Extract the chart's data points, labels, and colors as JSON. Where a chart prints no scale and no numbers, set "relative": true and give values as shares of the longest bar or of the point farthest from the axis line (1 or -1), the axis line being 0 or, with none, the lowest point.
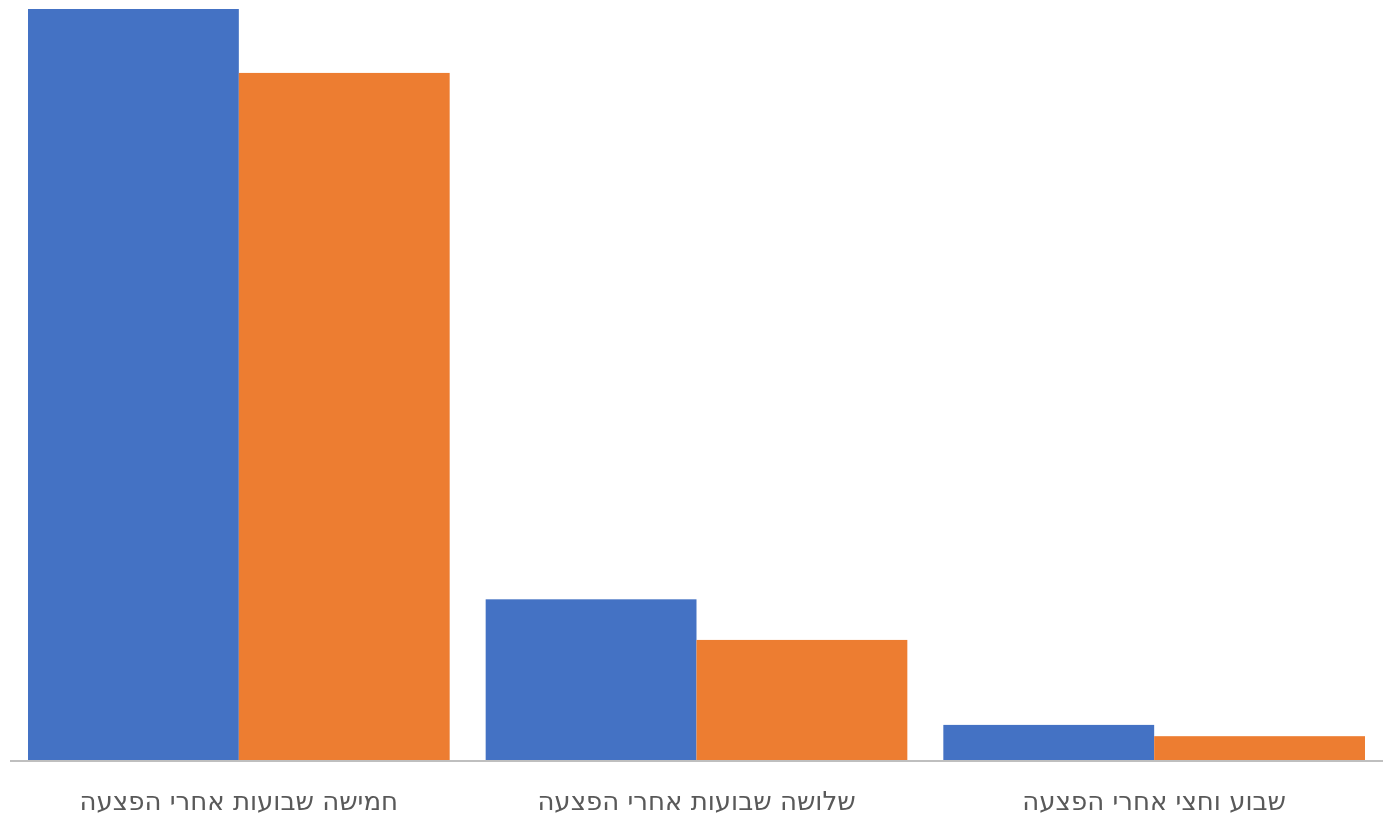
{
  "chart_data": {
    "type": "bar",
    "relative": true,
    "categories": [
      "חמישה שבועות אחרי הפצעה",
      "שלושה שבועות אחרי הפצעה",
      "שבוע וחצי אחרי הפצעה"
    ],
    "series": [
      {
        "color": "#4472c4",
        "values": [
          1,
          0.215,
          0.048
        ]
      },
      {
        "color": "#ed7d31",
        "values": [
          0.915,
          0.161,
          0.033
        ]
      }
    ]
  }
}
